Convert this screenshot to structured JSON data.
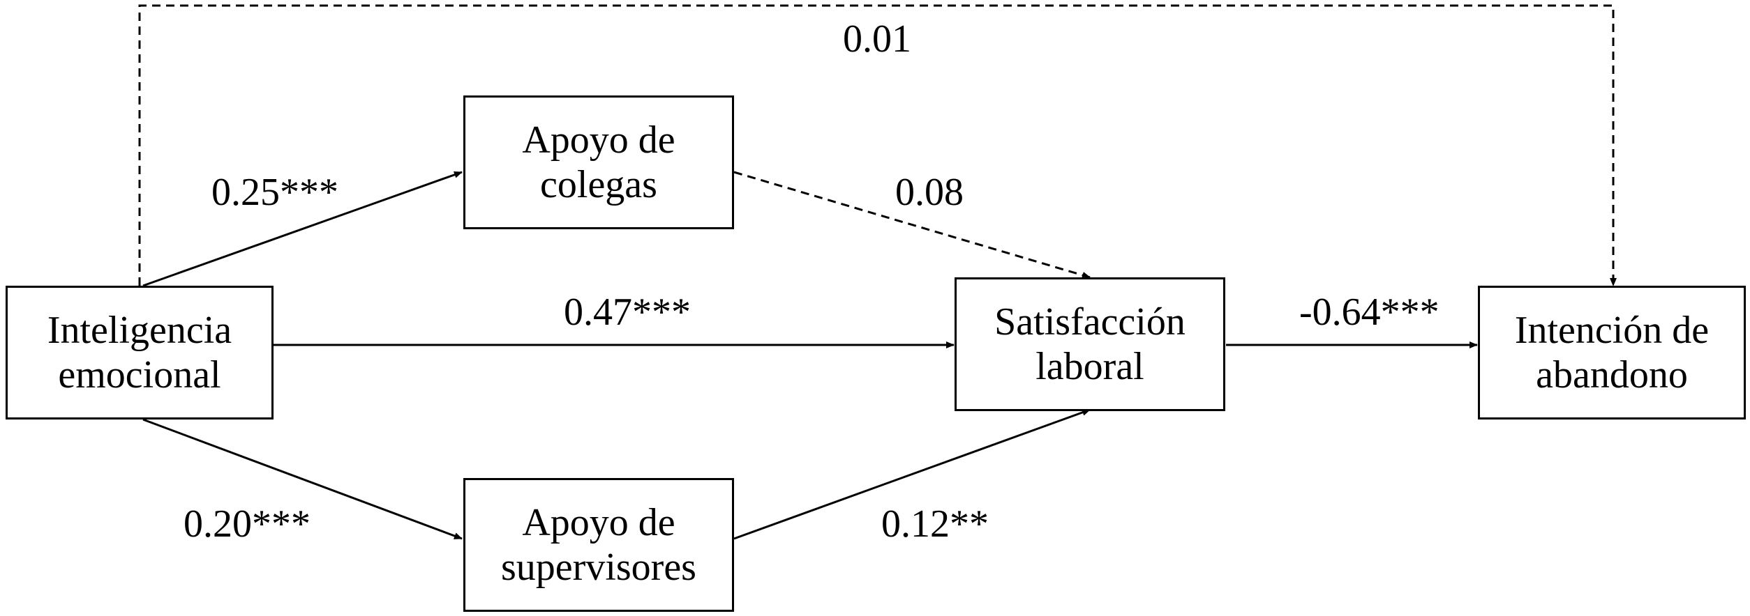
{
  "nodes": {
    "ie": {
      "line1": "Inteligencia",
      "line2": "emocional"
    },
    "ac": {
      "line1": "Apoyo de",
      "line2": "colegas"
    },
    "as": {
      "line1": "Apoyo de",
      "line2": "supervisores"
    },
    "sl": {
      "line1": "Satisfacción",
      "line2": "laboral"
    },
    "ia": {
      "line1": "Intención de",
      "line2": "abandono"
    }
  },
  "paths": {
    "ie_ia": {
      "coef": "0.01",
      "significant": false
    },
    "ie_ac": {
      "coef": "0.25***",
      "significant": true
    },
    "ac_sl": {
      "coef": "0.08",
      "significant": false
    },
    "ie_sl": {
      "coef": "0.47***",
      "significant": true
    },
    "sl_ia": {
      "coef": "-0.64***",
      "significant": true
    },
    "ie_as": {
      "coef": "0.20***",
      "significant": true
    },
    "as_sl": {
      "coef": "0.12**",
      "significant": true
    }
  }
}
